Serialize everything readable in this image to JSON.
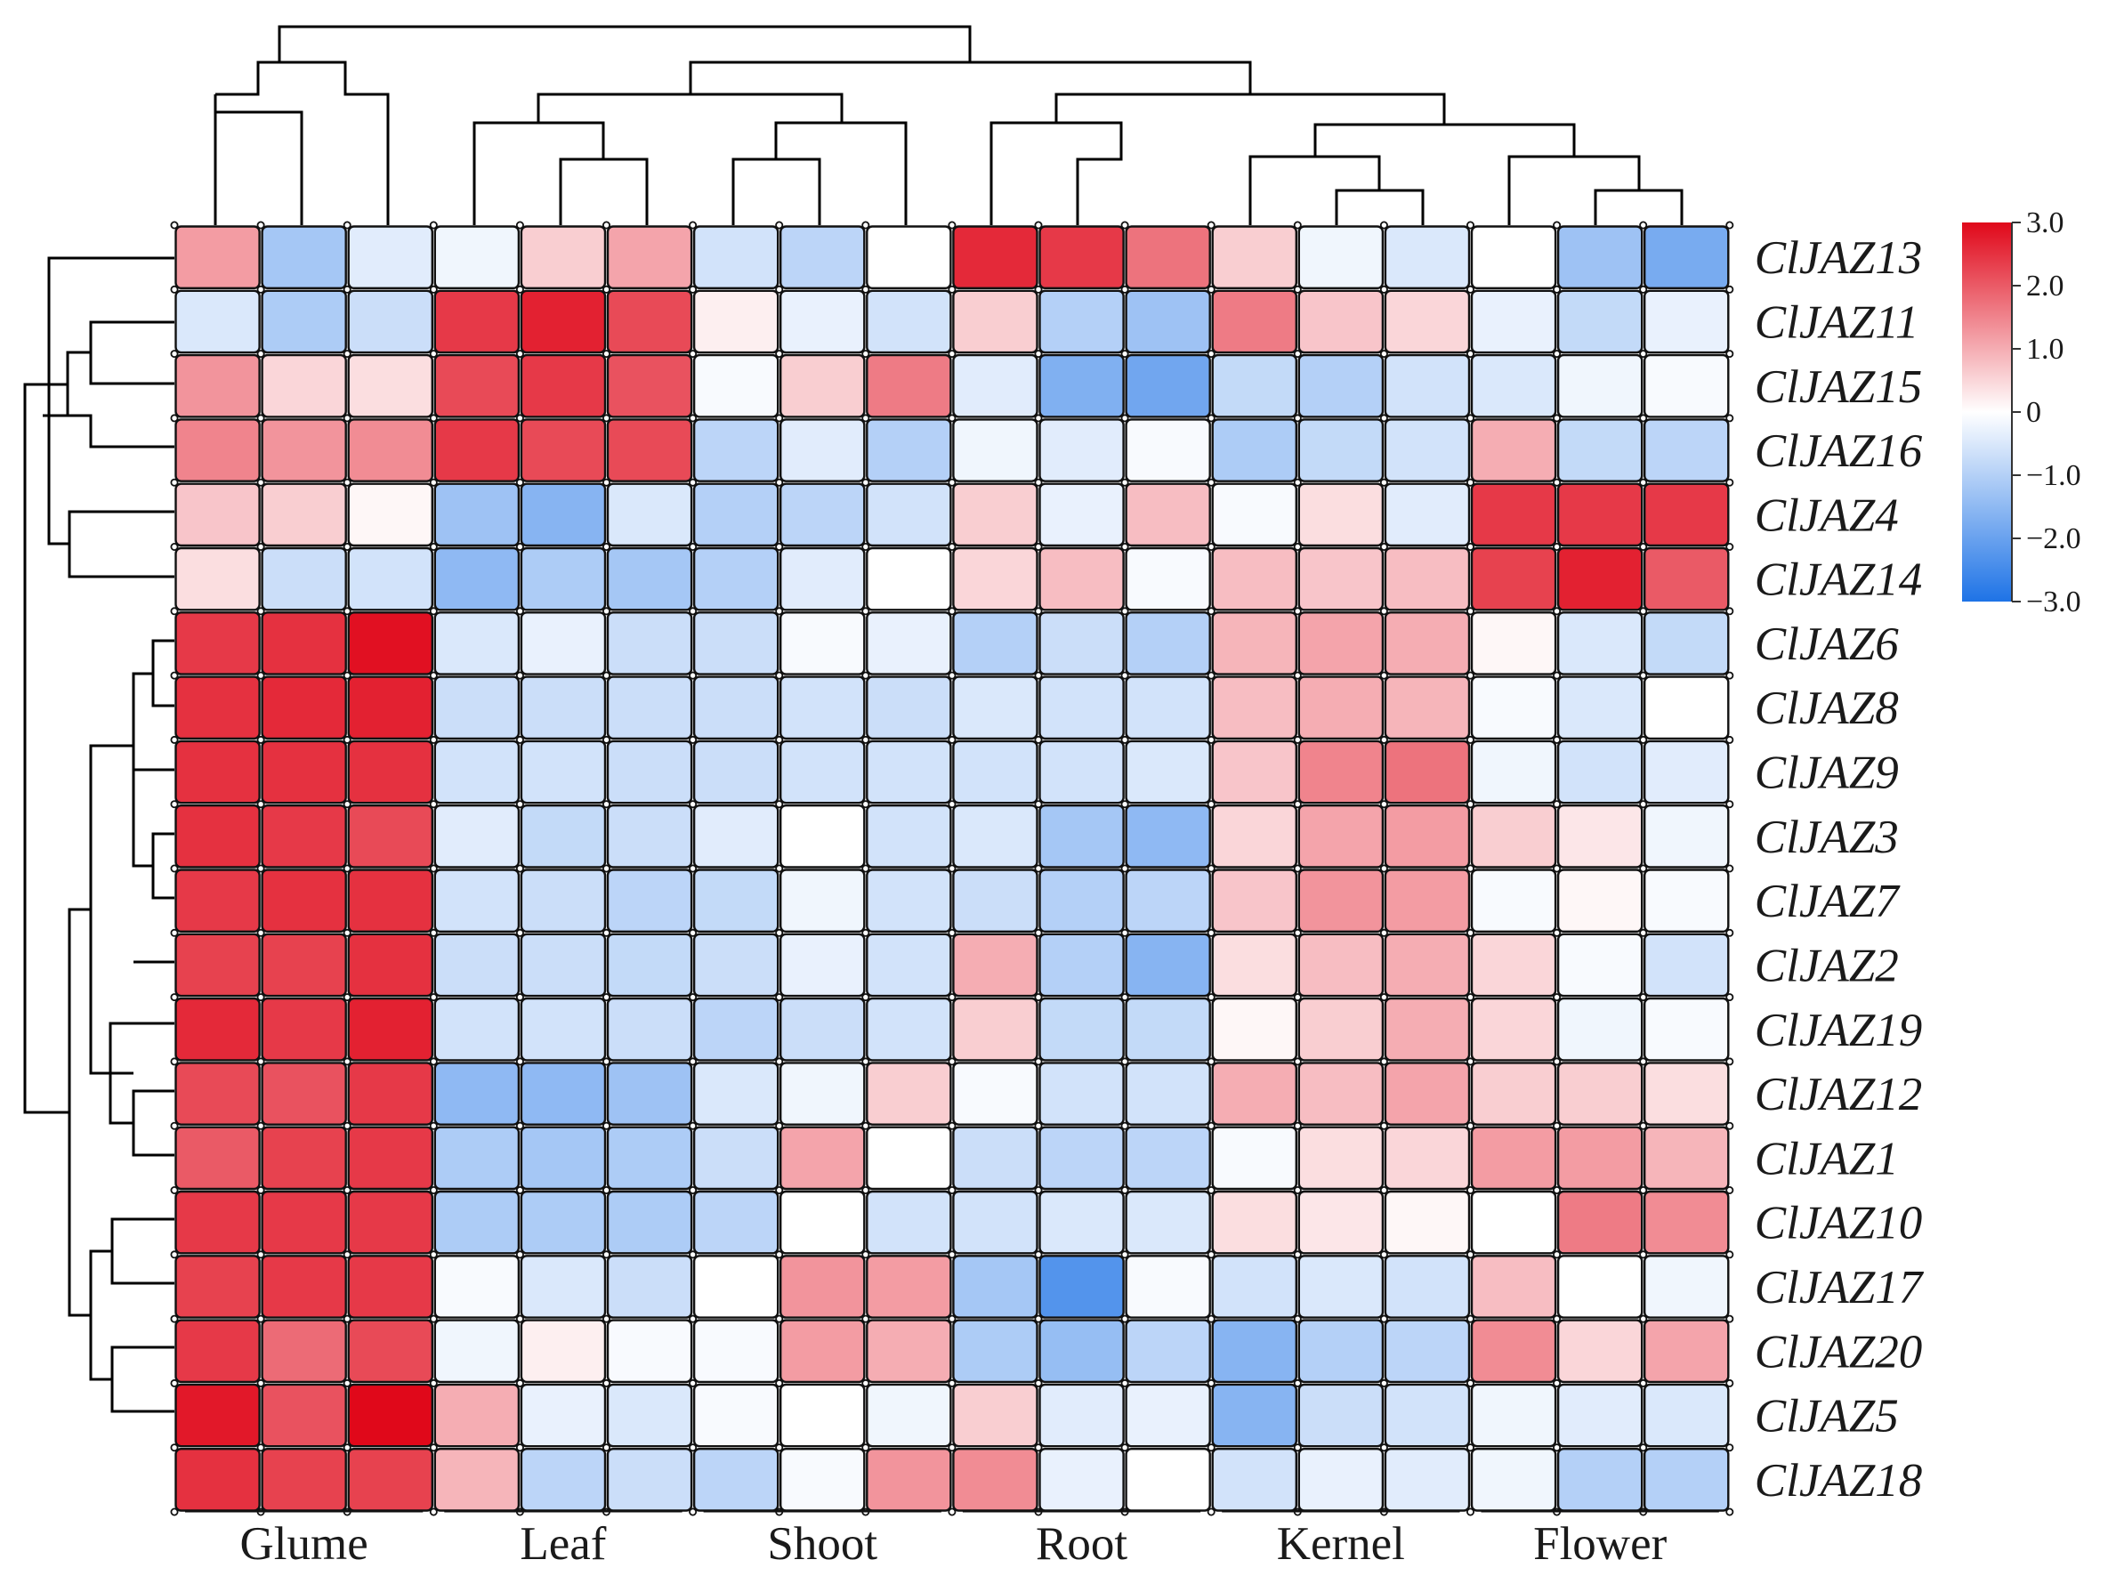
{
  "chart_data": {
    "type": "heatmap",
    "title": "",
    "rows": [
      "ClJAZ13",
      "ClJAZ11",
      "ClJAZ15",
      "ClJAZ16",
      "ClJAZ4",
      "ClJAZ14",
      "ClJAZ6",
      "ClJAZ8",
      "ClJAZ9",
      "ClJAZ3",
      "ClJAZ7",
      "ClJAZ2",
      "ClJAZ19",
      "ClJAZ12",
      "ClJAZ1",
      "ClJAZ10",
      "ClJAZ17",
      "ClJAZ20",
      "ClJAZ5",
      "ClJAZ18"
    ],
    "column_groups": [
      "Glume",
      "Leaf",
      "Shoot",
      "Root",
      "Kernel",
      "Flower"
    ],
    "replicates_per_group": 3,
    "values": [
      [
        1.2,
        -1.2,
        -0.4,
        -0.2,
        0.6,
        1.1,
        -0.6,
        -0.9,
        0.0,
        2.6,
        2.4,
        1.7,
        0.6,
        -0.2,
        -0.5,
        0.0,
        -1.3,
        -1.8
      ],
      [
        -0.5,
        -1.1,
        -0.7,
        2.4,
        2.7,
        2.2,
        0.2,
        -0.3,
        -0.6,
        0.6,
        -1.0,
        -1.3,
        1.6,
        0.7,
        0.5,
        -0.3,
        -0.8,
        -0.3
      ],
      [
        1.3,
        0.5,
        0.4,
        2.2,
        2.4,
        2.1,
        -0.1,
        0.6,
        1.6,
        -0.4,
        -1.7,
        -1.9,
        -0.8,
        -1.0,
        -0.6,
        -0.5,
        -0.2,
        -0.1
      ],
      [
        1.5,
        1.3,
        1.4,
        2.4,
        2.2,
        2.2,
        -0.9,
        -0.4,
        -1.0,
        -0.2,
        -0.4,
        -0.1,
        -1.1,
        -0.8,
        -0.6,
        1.0,
        -0.8,
        -0.9
      ],
      [
        0.7,
        0.6,
        0.1,
        -1.3,
        -1.6,
        -0.5,
        -1.0,
        -0.9,
        -0.6,
        0.6,
        -0.3,
        0.8,
        -0.1,
        0.4,
        -0.4,
        2.4,
        2.4,
        2.4
      ],
      [
        0.4,
        -0.7,
        -0.6,
        -1.5,
        -1.1,
        -1.2,
        -1.0,
        -0.4,
        0.0,
        0.5,
        0.8,
        -0.1,
        0.8,
        0.7,
        0.8,
        2.3,
        2.7,
        2.0
      ],
      [
        2.4,
        2.5,
        2.9,
        -0.5,
        -0.3,
        -0.7,
        -0.7,
        -0.1,
        -0.3,
        -1.0,
        -0.7,
        -1.0,
        0.9,
        1.1,
        1.0,
        0.1,
        -0.5,
        -0.8
      ],
      [
        2.5,
        2.6,
        2.7,
        -0.7,
        -0.7,
        -0.7,
        -0.7,
        -0.6,
        -0.7,
        -0.5,
        -0.6,
        -0.6,
        0.8,
        1.0,
        0.9,
        -0.1,
        -0.5,
        0.0
      ],
      [
        2.5,
        2.5,
        2.5,
        -0.6,
        -0.6,
        -0.7,
        -0.7,
        -0.6,
        -0.6,
        -0.6,
        -0.6,
        -0.5,
        0.7,
        1.5,
        1.7,
        -0.2,
        -0.6,
        -0.4
      ],
      [
        2.5,
        2.4,
        2.2,
        -0.4,
        -0.8,
        -0.7,
        -0.4,
        0.0,
        -0.6,
        -0.5,
        -1.2,
        -1.5,
        0.5,
        1.1,
        1.2,
        0.6,
        0.3,
        -0.2
      ],
      [
        2.4,
        2.5,
        2.5,
        -0.6,
        -0.7,
        -0.9,
        -0.8,
        -0.2,
        -0.6,
        -0.7,
        -1.0,
        -0.9,
        0.7,
        1.3,
        1.2,
        -0.1,
        0.1,
        -0.1
      ],
      [
        2.3,
        2.3,
        2.5,
        -0.7,
        -0.7,
        -0.8,
        -0.7,
        -0.3,
        -0.6,
        1.0,
        -1.0,
        -1.6,
        0.4,
        0.8,
        1.0,
        0.5,
        -0.1,
        -0.6
      ],
      [
        2.6,
        2.4,
        2.7,
        -0.6,
        -0.6,
        -0.7,
        -0.9,
        -0.7,
        -0.6,
        0.6,
        -0.8,
        -0.8,
        0.1,
        0.6,
        1.0,
        0.5,
        -0.2,
        -0.1
      ],
      [
        2.2,
        2.1,
        2.4,
        -1.5,
        -1.5,
        -1.3,
        -0.5,
        -0.2,
        0.6,
        -0.1,
        -0.6,
        -0.6,
        1.0,
        0.8,
        1.1,
        0.6,
        0.6,
        0.4
      ],
      [
        2.0,
        2.3,
        2.4,
        -1.1,
        -1.2,
        -1.1,
        -0.7,
        1.1,
        0.0,
        -0.7,
        -0.9,
        -0.9,
        -0.1,
        0.4,
        0.5,
        1.2,
        1.2,
        0.9
      ],
      [
        2.4,
        2.4,
        2.4,
        -1.1,
        -1.1,
        -1.1,
        -0.9,
        0.0,
        -0.6,
        -0.6,
        -0.5,
        -0.5,
        0.4,
        0.3,
        0.1,
        0.0,
        1.6,
        1.4
      ],
      [
        2.3,
        2.4,
        2.4,
        -0.1,
        -0.5,
        -0.7,
        0.0,
        1.3,
        1.2,
        -1.2,
        -2.3,
        -0.1,
        -0.6,
        -0.5,
        -0.6,
        0.8,
        0.0,
        -0.2
      ],
      [
        2.4,
        1.8,
        2.2,
        -0.2,
        0.2,
        -0.1,
        -0.1,
        1.2,
        1.0,
        -1.1,
        -1.4,
        -0.9,
        -1.6,
        -1.0,
        -0.9,
        1.4,
        0.5,
        1.1
      ],
      [
        2.8,
        2.1,
        3.0,
        1.0,
        -0.3,
        -0.5,
        -0.1,
        0.0,
        -0.2,
        0.6,
        -0.4,
        -0.3,
        -1.6,
        -0.7,
        -0.6,
        -0.2,
        -0.4,
        -0.5
      ],
      [
        2.5,
        2.3,
        2.3,
        0.9,
        -0.9,
        -0.7,
        -0.9,
        -0.1,
        1.3,
        1.4,
        -0.3,
        0.0,
        -0.6,
        -0.3,
        -0.4,
        -0.2,
        -1.0,
        -1.0
      ]
    ],
    "colorbar": {
      "min": -3.0,
      "max": 3.0,
      "ticks": [
        "3.0",
        "2.0",
        "1.0",
        "0",
        "−1.0",
        "−2.0",
        "−3.0"
      ],
      "colors": {
        "low": "#1e73e6",
        "mid": "#ffffff",
        "high": "#e0081a"
      }
    }
  }
}
